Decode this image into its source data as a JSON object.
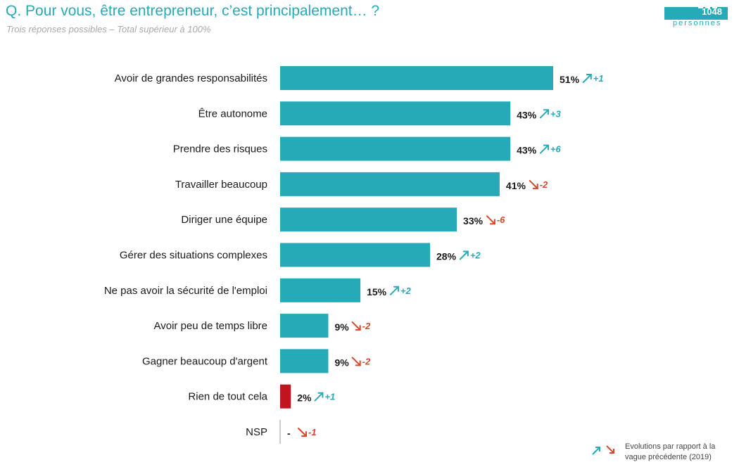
{
  "header": {
    "title": "Q. Pour vous, être entrepreneur, c’est principalement… ?",
    "subtitle": "Trois réponses possibles – Total supérieur à 100%",
    "sample_count": "1048",
    "sample_label": "personnes"
  },
  "legend": {
    "text_line1": "Evolutions par rapport à la",
    "text_line2": "vague précédente (2019)"
  },
  "colors": {
    "accent": "#27aab8",
    "highlight": "#c0141e",
    "decrease": "#d9462b",
    "label": "#1a1a1a"
  },
  "chart_data": {
    "type": "bar",
    "orientation": "horizontal",
    "title": "Q. Pour vous, être entrepreneur, c’est principalement… ?",
    "categories": [
      "Avoir de grandes responsabilités",
      "Être autonome",
      "Prendre des risques",
      "Travailler beaucoup",
      "Diriger une équipe",
      "Gérer des situations complexes",
      "Ne pas avoir la sécurité de l'emploi",
      "Avoir peu de temps libre",
      "Gagner beaucoup d'argent",
      "Rien de tout cela",
      "NSP"
    ],
    "values": [
      51,
      43,
      43,
      41,
      33,
      28,
      15,
      9,
      9,
      2,
      0
    ],
    "value_labels": [
      "51%",
      "43%",
      "43%",
      "41%",
      "33%",
      "28%",
      "15%",
      "9%",
      "9%",
      "2%",
      "-"
    ],
    "evolutions": [
      "+1",
      "+3",
      "+6",
      "-2",
      "-6",
      "+2",
      "+2",
      "-2",
      "-2",
      "+1",
      "-1"
    ],
    "xlim": [
      0,
      51
    ],
    "grid": false,
    "legend": "bottom-right"
  }
}
